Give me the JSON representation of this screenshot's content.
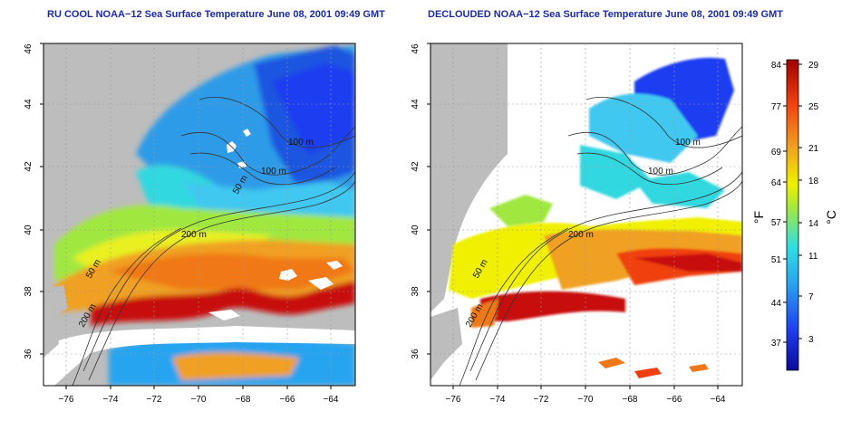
{
  "panels": [
    {
      "title": "RU COOL NOAA−12 Sea Surface Temperature June 08, 2001 09:49 GMT"
    },
    {
      "title": "DECLOUDED NOAA−12 Sea Surface Temperature June 08, 2001 09:49 GMT"
    }
  ],
  "axes": {
    "lat_ticks": [
      "46",
      "44",
      "42",
      "40",
      "38",
      "36"
    ],
    "lon_ticks": [
      "−76",
      "−74",
      "−72",
      "−70",
      "−68",
      "−66",
      "−64"
    ]
  },
  "contours": {
    "labels_left": [
      "100 m",
      "100 m",
      "200 m",
      "50 m",
      "200 m",
      "50 m"
    ],
    "labels_right": [
      "100 m",
      "100 m",
      "200 m",
      "50 m",
      "200 m"
    ]
  },
  "colorbar": {
    "unit_f": "°F",
    "unit_c": "°C",
    "ticks_f": [
      "84",
      "77",
      "69",
      "64",
      "57",
      "51",
      "44",
      "37"
    ],
    "ticks_c": [
      "29",
      "25",
      "21",
      "18",
      "14",
      "11",
      "7",
      "3"
    ],
    "colors": [
      "#0a0a9a",
      "#1e3ef0",
      "#28a4f0",
      "#30e0e0",
      "#a0e840",
      "#f0f000",
      "#f0a020",
      "#f04010",
      "#a00000"
    ]
  },
  "colors": {
    "land": "#bdbdbd",
    "cloud": "#ffffff",
    "title": "#1a2aa8"
  }
}
